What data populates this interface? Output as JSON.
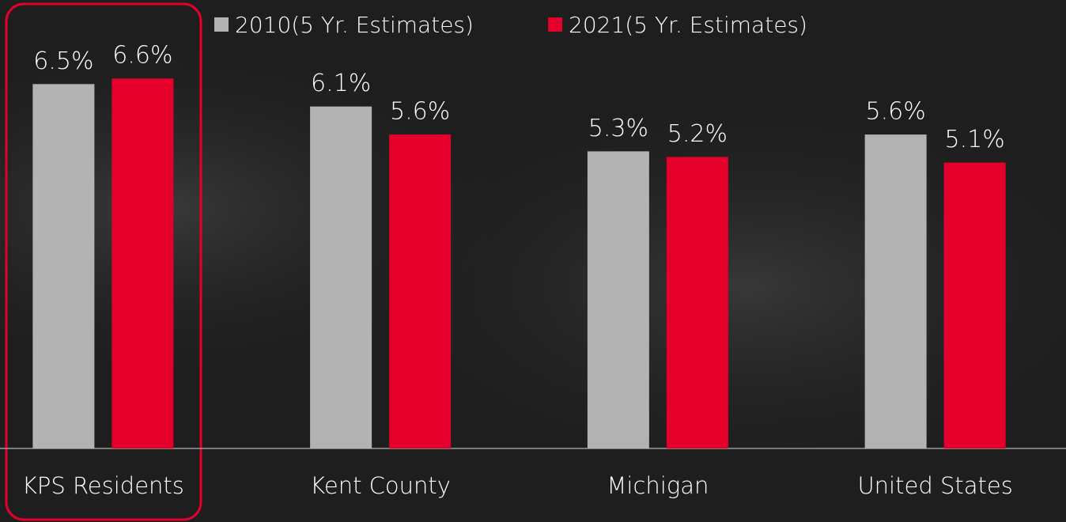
{
  "chart_data": {
    "type": "bar",
    "categories": [
      "KPS Residents",
      "Kent County",
      "Michigan",
      "United States"
    ],
    "series": [
      {
        "name": "2010(5 Yr. Estimates)",
        "color": "#b3b3b3",
        "values": [
          6.5,
          6.1,
          5.3,
          5.6
        ],
        "value_labels": [
          "6.5%",
          "6.1%",
          "5.3%",
          "5.6%"
        ]
      },
      {
        "name": "2021(5 Yr. Estimates)",
        "color": "#e4002b",
        "values": [
          6.6,
          5.6,
          5.2,
          5.1
        ],
        "value_labels": [
          "6.6%",
          "5.6%",
          "5.2%",
          "5.1%"
        ]
      }
    ],
    "ylim": [
      0,
      8
    ]
  }
}
